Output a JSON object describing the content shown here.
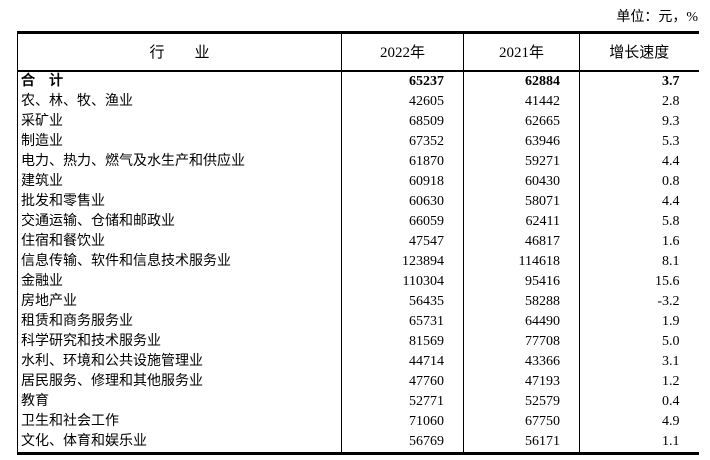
{
  "unit_note": "单位：元，%",
  "table": {
    "columns": [
      "行　　业",
      "2022年",
      "2021年",
      "增长速度"
    ],
    "rows": [
      {
        "industry": "合　计",
        "y2022": "65237",
        "y2021": "62884",
        "growth": "3.7",
        "bold": true
      },
      {
        "industry": "农、林、牧、渔业",
        "y2022": "42605",
        "y2021": "41442",
        "growth": "2.8",
        "bold": false
      },
      {
        "industry": "采矿业",
        "y2022": "68509",
        "y2021": "62665",
        "growth": "9.3",
        "bold": false
      },
      {
        "industry": "制造业",
        "y2022": "67352",
        "y2021": "63946",
        "growth": "5.3",
        "bold": false
      },
      {
        "industry": "电力、热力、燃气及水生产和供应业",
        "y2022": "61870",
        "y2021": "59271",
        "growth": "4.4",
        "bold": false
      },
      {
        "industry": "建筑业",
        "y2022": "60918",
        "y2021": "60430",
        "growth": "0.8",
        "bold": false
      },
      {
        "industry": "批发和零售业",
        "y2022": "60630",
        "y2021": "58071",
        "growth": "4.4",
        "bold": false
      },
      {
        "industry": "交通运输、仓储和邮政业",
        "y2022": "66059",
        "y2021": "62411",
        "growth": "5.8",
        "bold": false
      },
      {
        "industry": "住宿和餐饮业",
        "y2022": "47547",
        "y2021": "46817",
        "growth": "1.6",
        "bold": false
      },
      {
        "industry": "信息传输、软件和信息技术服务业",
        "y2022": "123894",
        "y2021": "114618",
        "growth": "8.1",
        "bold": false
      },
      {
        "industry": "金融业",
        "y2022": "110304",
        "y2021": "95416",
        "growth": "15.6",
        "bold": false
      },
      {
        "industry": "房地产业",
        "y2022": "56435",
        "y2021": "58288",
        "growth": "-3.2",
        "bold": false
      },
      {
        "industry": "租赁和商务服务业",
        "y2022": "65731",
        "y2021": "64490",
        "growth": "1.9",
        "bold": false
      },
      {
        "industry": "科学研究和技术服务业",
        "y2022": "81569",
        "y2021": "77708",
        "growth": "5.0",
        "bold": false
      },
      {
        "industry": "水利、环境和公共设施管理业",
        "y2022": "44714",
        "y2021": "43366",
        "growth": "3.1",
        "bold": false
      },
      {
        "industry": "居民服务、修理和其他服务业",
        "y2022": "47760",
        "y2021": "47193",
        "growth": "1.2",
        "bold": false
      },
      {
        "industry": "教育",
        "y2022": "52771",
        "y2021": "52579",
        "growth": "0.4",
        "bold": false
      },
      {
        "industry": "卫生和社会工作",
        "y2022": "71060",
        "y2021": "67750",
        "growth": "4.9",
        "bold": false
      },
      {
        "industry": "文化、体育和娱乐业",
        "y2022": "56769",
        "y2021": "56171",
        "growth": "1.1",
        "bold": false
      }
    ]
  },
  "colors": {
    "text": "#000000",
    "background": "#ffffff",
    "border": "#000000"
  }
}
